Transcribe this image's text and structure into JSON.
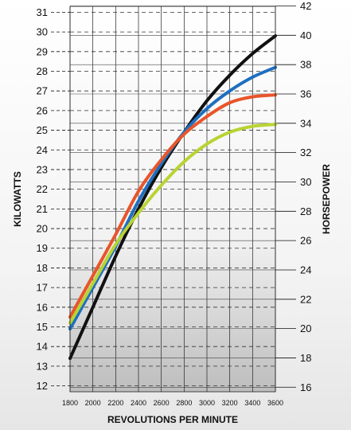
{
  "chart_data": {
    "type": "line",
    "xlabel": "REVOLUTIONS PER MINUTE",
    "ylabel_left": "KILOWATTS",
    "ylabel_right": "HORSEPOWER",
    "x_ticks": [
      1800,
      2000,
      2200,
      2400,
      2600,
      2800,
      3000,
      3200,
      3400,
      3600
    ],
    "xlim": [
      1800,
      3600
    ],
    "ylim_left": [
      11.7,
      31.3
    ],
    "y_ticks_left": [
      12,
      13,
      14,
      15,
      16,
      17,
      18,
      19,
      20,
      21,
      22,
      23,
      24,
      25,
      26,
      27,
      28,
      29,
      30,
      31
    ],
    "y_ticks_right": [
      16,
      18,
      20,
      22,
      24,
      26,
      28,
      30,
      32,
      34,
      36,
      38,
      40,
      42
    ],
    "hp_per_kw": 1.341,
    "grid": true,
    "series": [
      {
        "color": "#111111",
        "x": [
          1800,
          2000,
          2200,
          2400,
          2600,
          2800,
          3000,
          3200,
          3400,
          3600
        ],
        "values": [
          13.4,
          16.0,
          18.6,
          21.0,
          23.1,
          24.9,
          26.5,
          27.8,
          28.9,
          29.8
        ]
      },
      {
        "color": "#1f6fc0",
        "x": [
          1800,
          2000,
          2200,
          2400,
          2600,
          2800,
          3000,
          3200,
          3400,
          3600
        ],
        "values": [
          14.9,
          17.0,
          19.1,
          21.4,
          23.3,
          24.9,
          26.1,
          27.0,
          27.7,
          28.2
        ]
      },
      {
        "color": "#e8552a",
        "x": [
          1800,
          2000,
          2200,
          2400,
          2600,
          2800,
          3000,
          3200,
          3400,
          3600
        ],
        "values": [
          15.5,
          17.6,
          19.7,
          21.9,
          23.5,
          24.8,
          25.7,
          26.4,
          26.7,
          26.8
        ]
      },
      {
        "color": "#b8d432",
        "x": [
          1800,
          2000,
          2200,
          2400,
          2600,
          2800,
          3000,
          3200,
          3400,
          3600
        ],
        "values": [
          15.2,
          17.2,
          19.2,
          20.8,
          22.2,
          23.4,
          24.3,
          24.9,
          25.2,
          25.3
        ]
      }
    ]
  }
}
